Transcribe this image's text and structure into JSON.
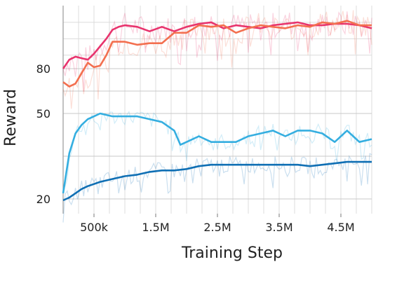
{
  "chart_data": {
    "type": "line",
    "title": "",
    "xlabel": "Training Step",
    "ylabel": "Reward",
    "x_tick_labels": [
      "500k",
      "1.5M",
      "2.5M",
      "3.5M",
      "4.5M"
    ],
    "x_ticks": [
      500000,
      1500000,
      2500000,
      3500000,
      4500000
    ],
    "y_tick_labels": [
      "20",
      "50",
      "80"
    ],
    "y_ticks": [
      20,
      50,
      80
    ],
    "xlim": [
      0,
      5000000
    ],
    "grid": true,
    "legend": "none",
    "series": [
      {
        "color": "#e8336d",
        "x": [
          0,
          100000,
          200000,
          300000,
          400000,
          500000,
          600000,
          700000,
          800000,
          900000,
          1000000,
          1200000,
          1400000,
          1600000,
          1800000,
          2000000,
          2200000,
          2400000,
          2600000,
          2800000,
          3000000,
          3200000,
          3400000,
          3600000,
          3800000,
          4000000,
          4200000,
          4400000,
          4600000,
          4800000,
          5000000
        ],
        "y": [
          80,
          86,
          88,
          87,
          86,
          90,
          95,
          100,
          106,
          108,
          109,
          108,
          105,
          108,
          105,
          108,
          110,
          111,
          107,
          109,
          108,
          107,
          109,
          110,
          111,
          109,
          109,
          110,
          110,
          109,
          107
        ]
      },
      {
        "color": "#f36f4f",
        "x": [
          0,
          100000,
          200000,
          300000,
          400000,
          500000,
          600000,
          700000,
          800000,
          1000000,
          1200000,
          1400000,
          1600000,
          1800000,
          2000000,
          2200000,
          2400000,
          2600000,
          2800000,
          3000000,
          3200000,
          3400000,
          3600000,
          3800000,
          4000000,
          4200000,
          4400000,
          4600000,
          4800000,
          5000000
        ],
        "y": [
          71,
          68,
          70,
          77,
          84,
          81,
          82,
          89,
          98,
          98,
          96,
          97,
          97,
          104,
          104,
          109,
          108,
          109,
          104,
          107,
          109,
          108,
          107,
          109,
          108,
          111,
          110,
          112,
          109,
          109
        ]
      },
      {
        "color": "#34aee0",
        "x": [
          0,
          100000,
          200000,
          300000,
          400000,
          500000,
          600000,
          800000,
          1000000,
          1200000,
          1400000,
          1600000,
          1800000,
          1900000,
          2000000,
          2200000,
          2400000,
          2600000,
          2800000,
          3000000,
          3200000,
          3400000,
          3600000,
          3800000,
          4000000,
          4200000,
          4400000,
          4600000,
          4800000,
          5000000
        ],
        "y": [
          22,
          36,
          43,
          46,
          48,
          49,
          50,
          49,
          49,
          49,
          48,
          47,
          44,
          39,
          40,
          42,
          40,
          40,
          40,
          42,
          43,
          44,
          42,
          44,
          44,
          43,
          40,
          44,
          40,
          41
        ]
      },
      {
        "color": "#0f6fb4",
        "x": [
          0,
          100000,
          200000,
          300000,
          400000,
          600000,
          800000,
          1000000,
          1200000,
          1400000,
          1600000,
          1800000,
          2000000,
          2200000,
          2400000,
          2600000,
          2800000,
          3000000,
          3200000,
          3400000,
          3600000,
          3800000,
          4000000,
          4200000,
          4400000,
          4600000,
          4800000,
          5000000
        ],
        "y": [
          19.5,
          20.5,
          22,
          23.5,
          24.5,
          26,
          27,
          28,
          28.5,
          29.5,
          30,
          30,
          30.5,
          31.5,
          32,
          32,
          32,
          32,
          32,
          32,
          32,
          32,
          31.5,
          32,
          32.5,
          33,
          33,
          33
        ]
      }
    ]
  }
}
